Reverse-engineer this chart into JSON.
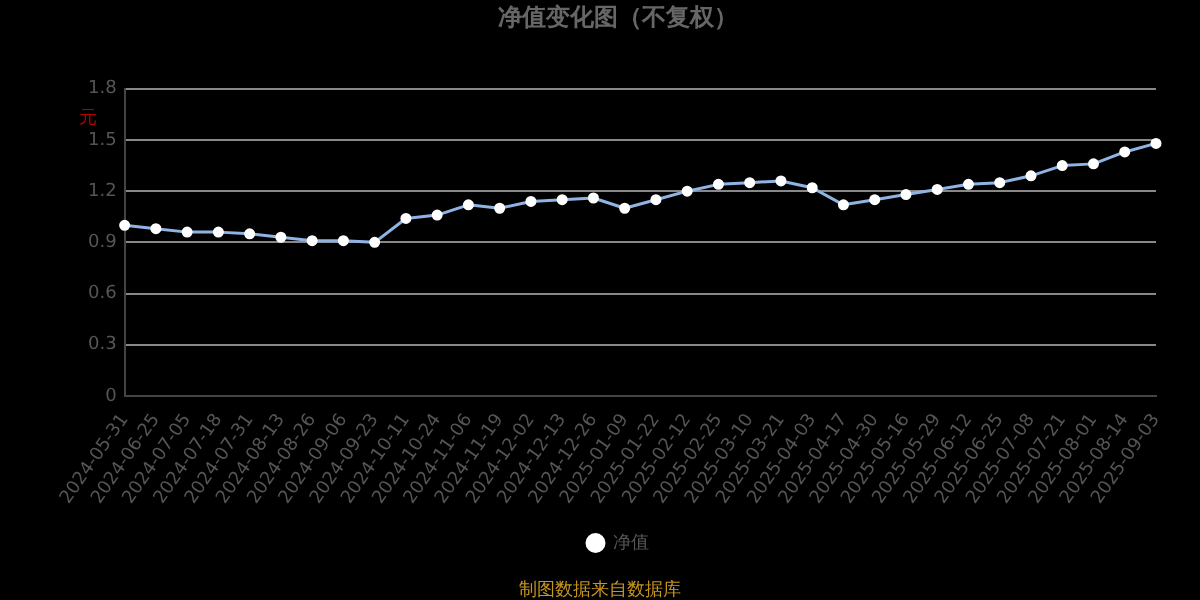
{
  "chart_data": {
    "type": "line",
    "title": "净值变化图（不复权）",
    "ylabel": "元",
    "categories": [
      "2024-05-31",
      "2024-06-25",
      "2024-07-05",
      "2024-07-18",
      "2024-07-31",
      "2024-08-13",
      "2024-08-26",
      "2024-09-06",
      "2024-09-23",
      "2024-10-11",
      "2024-10-24",
      "2024-11-06",
      "2024-11-19",
      "2024-12-02",
      "2024-12-13",
      "2024-12-26",
      "2025-01-09",
      "2025-01-22",
      "2025-02-12",
      "2025-02-25",
      "2025-03-10",
      "2025-03-21",
      "2025-04-03",
      "2025-04-17",
      "2025-04-30",
      "2025-05-16",
      "2025-05-29",
      "2025-06-12",
      "2025-06-25",
      "2025-07-08",
      "2025-07-21",
      "2025-08-01",
      "2025-08-14",
      "2025-09-03"
    ],
    "series": [
      {
        "name": "净值",
        "color": "#8fb4e3",
        "values": [
          1.0,
          0.98,
          0.96,
          0.96,
          0.95,
          0.93,
          0.91,
          0.91,
          0.9,
          1.04,
          1.06,
          1.12,
          1.1,
          1.14,
          1.15,
          1.16,
          1.1,
          1.15,
          1.2,
          1.24,
          1.25,
          1.26,
          1.22,
          1.12,
          1.15,
          1.18,
          1.21,
          1.24,
          1.25,
          1.29,
          1.35,
          1.36,
          1.43,
          1.48
        ]
      }
    ],
    "ylim": [
      0,
      1.8
    ],
    "yticks": [
      0,
      0.3,
      0.6,
      0.9,
      1.2,
      1.5,
      1.8
    ],
    "grid": "y",
    "legend": "bottom",
    "marker": "circle",
    "line_style": "solid",
    "annotations": [
      "制图数据来自数据库"
    ]
  }
}
